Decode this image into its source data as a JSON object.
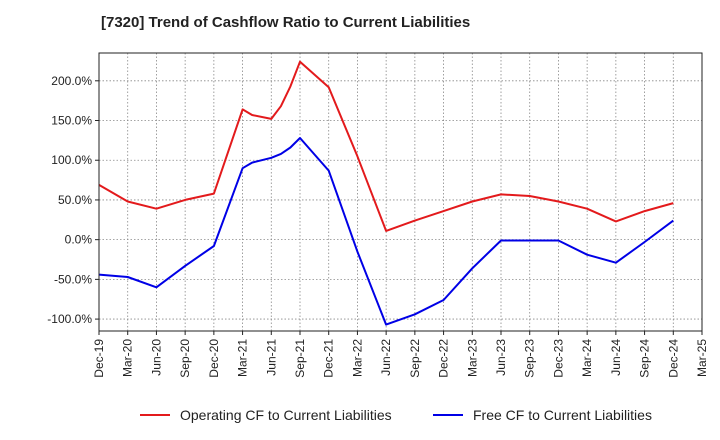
{
  "title": "[7320]  Trend of Cashflow Ratio to Current Liabilities",
  "chart_data": {
    "type": "line",
    "title": "[7320]  Trend of Cashflow Ratio to Current Liabilities",
    "xlabel": "",
    "ylabel": "",
    "ylim": [
      -115,
      235
    ],
    "yticks": [
      -100,
      -50,
      0,
      50,
      100,
      150,
      200
    ],
    "ytick_labels": [
      "-100.0%",
      "-50.0%",
      "0.0%",
      "50.0%",
      "100.0%",
      "150.0%",
      "200.0%"
    ],
    "categories": [
      "Dec-19",
      "Mar-20",
      "Jun-20",
      "Sep-20",
      "Dec-20",
      "Mar-21",
      "Jun-21",
      "Sep-21",
      "Dec-21",
      "Mar-22",
      "Jun-22",
      "Sep-22",
      "Dec-22",
      "Mar-23",
      "Jun-23",
      "Sep-23",
      "Dec-23",
      "Mar-24",
      "Jun-24",
      "Sep-24",
      "Dec-24",
      "Mar-25"
    ],
    "grid": true,
    "legend_position": "bottom",
    "series": [
      {
        "name": "Operating CF to Current Liabilities",
        "color": "#e31a1c",
        "points": [
          {
            "x": "Dec-19",
            "y": 69
          },
          {
            "x": "Mar-20",
            "y": 48
          },
          {
            "x": "Jun-20",
            "y": 39
          },
          {
            "x": "Sep-20",
            "y": 50
          },
          {
            "x": "Dec-20",
            "y": 58
          },
          {
            "x": "Mar-21",
            "y": 164
          },
          {
            "x": "Apr-21",
            "y": 157
          },
          {
            "x": "Jun-21",
            "y": 152
          },
          {
            "x": "Jul-21",
            "y": 168
          },
          {
            "x": "Aug-21",
            "y": 193
          },
          {
            "x": "Sep-21",
            "y": 224
          },
          {
            "x": "Dec-21",
            "y": 192
          },
          {
            "x": "Mar-22",
            "y": 105
          },
          {
            "x": "Jun-22",
            "y": 11
          },
          {
            "x": "Sep-22",
            "y": 24
          },
          {
            "x": "Dec-22",
            "y": 36
          },
          {
            "x": "Mar-23",
            "y": 48
          },
          {
            "x": "Jun-23",
            "y": 57
          },
          {
            "x": "Sep-23",
            "y": 55
          },
          {
            "x": "Dec-23",
            "y": 48
          },
          {
            "x": "Mar-24",
            "y": 39
          },
          {
            "x": "Jun-24",
            "y": 23
          },
          {
            "x": "Sep-24",
            "y": 36
          },
          {
            "x": "Dec-24",
            "y": 46
          }
        ]
      },
      {
        "name": "Free CF to Current Liabilities",
        "color": "#0000e6",
        "points": [
          {
            "x": "Dec-19",
            "y": -44
          },
          {
            "x": "Mar-20",
            "y": -47
          },
          {
            "x": "Jun-20",
            "y": -60
          },
          {
            "x": "Sep-20",
            "y": -33
          },
          {
            "x": "Dec-20",
            "y": -8
          },
          {
            "x": "Mar-21",
            "y": 90
          },
          {
            "x": "Apr-21",
            "y": 97
          },
          {
            "x": "Jun-21",
            "y": 103
          },
          {
            "x": "Jul-21",
            "y": 108
          },
          {
            "x": "Aug-21",
            "y": 116
          },
          {
            "x": "Sep-21",
            "y": 128
          },
          {
            "x": "Dec-21",
            "y": 87
          },
          {
            "x": "Mar-22",
            "y": -15
          },
          {
            "x": "Jun-22",
            "y": -107
          },
          {
            "x": "Sep-22",
            "y": -94
          },
          {
            "x": "Dec-22",
            "y": -76
          },
          {
            "x": "Mar-23",
            "y": -36
          },
          {
            "x": "Jun-23",
            "y": -1
          },
          {
            "x": "Sep-23",
            "y": -1
          },
          {
            "x": "Dec-23",
            "y": -1
          },
          {
            "x": "Mar-24",
            "y": -19
          },
          {
            "x": "Jun-24",
            "y": -29
          },
          {
            "x": "Sep-24",
            "y": -3
          },
          {
            "x": "Dec-24",
            "y": 24
          }
        ]
      }
    ]
  }
}
